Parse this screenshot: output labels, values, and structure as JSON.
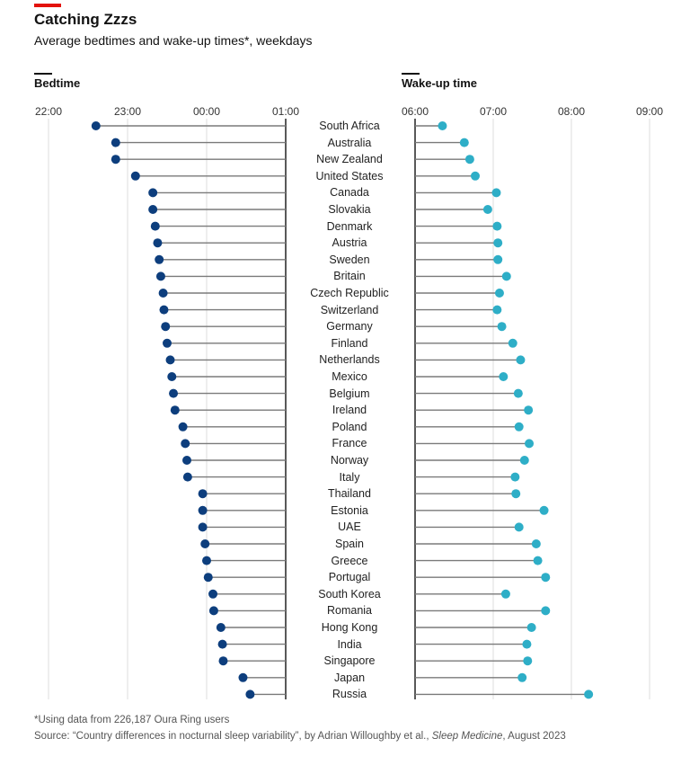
{
  "header": {
    "title": "Catching Zzzs",
    "subtitle": "Average bedtimes and wake-up times*, weekdays"
  },
  "footer": {
    "footnote": "*Using data from 226,187 Oura Ring users",
    "source_prefix": "Source: “Country differences in nocturnal sleep variability”, by Adrian Willoughby et al., ",
    "source_journal": "Sleep Medicine",
    "source_suffix": ", August 2023"
  },
  "colors": {
    "bedtime_dot": "#0d3e7d",
    "wake_dot": "#2eaec7",
    "stem": "#7a7a7a",
    "grid": "#dcdcdc",
    "axis": "#222222",
    "accent": "#e3120b"
  },
  "chart_data": [
    {
      "type": "dot-stem",
      "panel": "bedtime",
      "title": "Bedtime",
      "unit": "hours relative to midnight",
      "ticks": [
        {
          "value": -2,
          "label": "22:00"
        },
        {
          "value": -1,
          "label": "23:00"
        },
        {
          "value": 0,
          "label": "00:00"
        },
        {
          "value": 1,
          "label": "01:00"
        }
      ],
      "xlim": [
        -2,
        1
      ],
      "baseline": 1,
      "categories": [
        "South Africa",
        "Australia",
        "New Zealand",
        "United States",
        "Canada",
        "Slovakia",
        "Denmark",
        "Austria",
        "Sweden",
        "Britain",
        "Czech Republic",
        "Switzerland",
        "Germany",
        "Finland",
        "Netherlands",
        "Mexico",
        "Belgium",
        "Ireland",
        "Poland",
        "France",
        "Norway",
        "Italy",
        "Thailand",
        "Estonia",
        "UAE",
        "Spain",
        "Greece",
        "Portugal",
        "South Korea",
        "Romania",
        "Hong Kong",
        "India",
        "Singapore",
        "Japan",
        "Russia"
      ],
      "values": [
        -1.4,
        -1.15,
        -1.15,
        -0.9,
        -0.68,
        -0.68,
        -0.65,
        -0.62,
        -0.6,
        -0.58,
        -0.55,
        -0.54,
        -0.52,
        -0.5,
        -0.46,
        -0.44,
        -0.42,
        -0.4,
        -0.3,
        -0.27,
        -0.25,
        -0.24,
        -0.05,
        -0.05,
        -0.05,
        -0.02,
        0.0,
        0.02,
        0.08,
        0.09,
        0.18,
        0.2,
        0.21,
        0.46,
        0.55
      ]
    },
    {
      "type": "dot-stem",
      "panel": "wake",
      "title": "Wake-up time",
      "unit": "hours after midnight",
      "ticks": [
        {
          "value": 6,
          "label": "06:00"
        },
        {
          "value": 7,
          "label": "07:00"
        },
        {
          "value": 8,
          "label": "08:00"
        },
        {
          "value": 9,
          "label": "09:00"
        }
      ],
      "xlim": [
        6,
        9
      ],
      "baseline": 6,
      "categories": [
        "South Africa",
        "Australia",
        "New Zealand",
        "United States",
        "Canada",
        "Slovakia",
        "Denmark",
        "Austria",
        "Sweden",
        "Britain",
        "Czech Republic",
        "Switzerland",
        "Germany",
        "Finland",
        "Netherlands",
        "Mexico",
        "Belgium",
        "Ireland",
        "Poland",
        "France",
        "Norway",
        "Italy",
        "Thailand",
        "Estonia",
        "UAE",
        "Spain",
        "Greece",
        "Portugal",
        "South Korea",
        "Romania",
        "Hong Kong",
        "India",
        "Singapore",
        "Japan",
        "Russia"
      ],
      "values": [
        6.35,
        6.63,
        6.7,
        6.77,
        7.04,
        6.93,
        7.05,
        7.06,
        7.06,
        7.17,
        7.08,
        7.05,
        7.11,
        7.25,
        7.35,
        7.13,
        7.32,
        7.45,
        7.33,
        7.46,
        7.4,
        7.28,
        7.29,
        7.65,
        7.33,
        7.55,
        7.57,
        7.67,
        7.16,
        7.67,
        7.49,
        7.43,
        7.44,
        7.37,
        8.22
      ]
    }
  ]
}
